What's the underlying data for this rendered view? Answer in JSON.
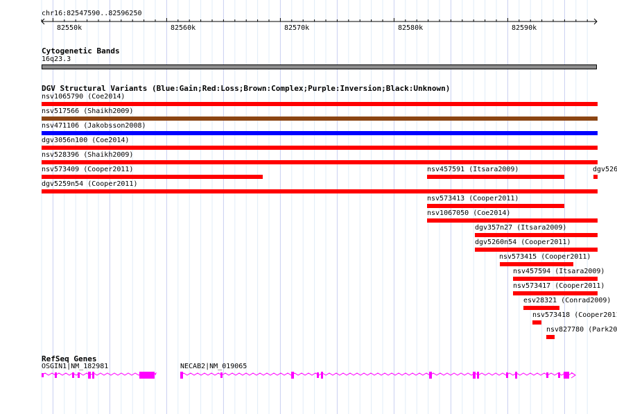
{
  "ruler": {
    "position": "chr16:82547590..82596250",
    "ticks": [
      "82550k",
      "82560k",
      "82570k",
      "82580k",
      "82590k"
    ]
  },
  "cyto": {
    "title": "Cytogenetic Bands",
    "band": "16q23.3",
    "color": "#8c8c8c"
  },
  "dgv": {
    "title": "DGV Structural Variants (Blue:Gain;Red:Loss;Brown:Complex;Purple:Inversion;Black:Unknown)",
    "colors": {
      "loss": "#ff0000",
      "gain": "#0000ff",
      "complex": "#8b4513"
    },
    "items": [
      {
        "label": "nsv1065790 (Coe2014)",
        "type": "loss"
      },
      {
        "label": "nsv517566 (Shaikh2009)",
        "type": "complex"
      },
      {
        "label": "nsv471106 (Jakobsson2008)",
        "type": "gain"
      },
      {
        "label": "dgv3056n100 (Coe2014)",
        "type": "loss"
      },
      {
        "label": "nsv528396 (Shaikh2009)",
        "type": "loss"
      },
      {
        "label": "nsv573409 (Cooper2011)",
        "type": "loss"
      },
      {
        "label": "nsv457591 (Itsara2009)",
        "type": "loss"
      },
      {
        "label": "dgv526",
        "type": "loss"
      },
      {
        "label": "dgv5259n54 (Cooper2011)",
        "type": "loss"
      },
      {
        "label": "nsv573413 (Cooper2011)",
        "type": "loss"
      },
      {
        "label": "nsv1067050 (Coe2014)",
        "type": "loss"
      },
      {
        "label": "dgv357n27 (Itsara2009)",
        "type": "loss"
      },
      {
        "label": "dgv5260n54 (Cooper2011)",
        "type": "loss"
      },
      {
        "label": "nsv573415 (Cooper2011)",
        "type": "loss"
      },
      {
        "label": "nsv457594 (Itsara2009)",
        "type": "loss"
      },
      {
        "label": "nsv573417 (Cooper2011)",
        "type": "loss"
      },
      {
        "label": "esv28321 (Conrad2009)",
        "type": "loss"
      },
      {
        "label": "nsv573418 (Cooper2011",
        "type": "loss"
      },
      {
        "label": "nsv827780 (Park20",
        "type": "loss"
      }
    ]
  },
  "refseq": {
    "title": "RefSeq Genes",
    "color": "#ff00ff",
    "genes": [
      {
        "label": "OSGIN1|NM_182981"
      },
      {
        "label": "NECAB2|NM_019065"
      }
    ]
  }
}
